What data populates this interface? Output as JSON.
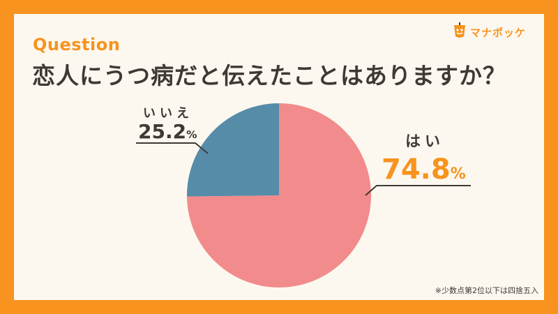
{
  "brand": {
    "name": "マナポッケ",
    "colors": {
      "frame": "#f7931e",
      "card": "#fdf8ef"
    }
  },
  "question": {
    "label": "Question",
    "text": "恋人にうつ病だと伝えたことはありますか？"
  },
  "footnote": "※少数点第2位以下は四捨五入",
  "chart_data": {
    "type": "pie",
    "categories": [
      "はい",
      "いいえ"
    ],
    "values": [
      74.8,
      25.2
    ],
    "value_labels": [
      "74.8",
      "25.2"
    ],
    "unit": "%",
    "colors": [
      "#f28b8b",
      "#578ca9"
    ],
    "label_colors": [
      "#f7931e",
      "#3d3935"
    ],
    "start_angle_deg": 0,
    "direction": "clockwise",
    "legend": "none"
  }
}
